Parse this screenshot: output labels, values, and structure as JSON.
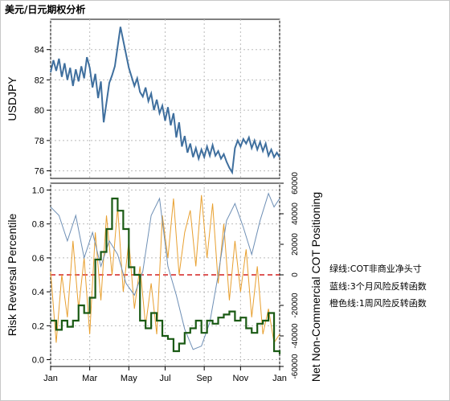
{
  "title": "美元/日元期权分析",
  "annotations": [
    "绿线:COT非商业净头寸",
    "蓝线:3个月风险反转函数",
    "橙色线:1周风险反转函数"
  ],
  "colors": {
    "usdjpy": "#3f6f9e",
    "rr3m": "#6e8fb5",
    "rr1w": "#e8a030",
    "cot": "#1a5a14",
    "threshold": "#d42020",
    "grid": "#bbbbbb"
  },
  "chart_data": [
    {
      "type": "line",
      "ylabel": "USDJPY",
      "ylim": [
        75.5,
        86
      ],
      "yticks": [
        76,
        78,
        80,
        82,
        84
      ],
      "grid": true,
      "series": [
        {
          "values": [
            [
              0,
              82.5
            ],
            [
              1,
              83.3
            ],
            [
              2,
              82.6
            ],
            [
              3,
              83.4
            ],
            [
              4,
              82.2
            ],
            [
              5,
              83.1
            ],
            [
              6,
              82.0
            ],
            [
              7,
              82.8
            ],
            [
              8,
              81.6
            ],
            [
              9,
              82.7
            ],
            [
              10,
              81.9
            ],
            [
              11,
              82.9
            ],
            [
              12,
              82.1
            ],
            [
              13,
              83.5
            ],
            [
              14,
              82.8
            ],
            [
              15,
              81.5
            ],
            [
              16,
              82.4
            ],
            [
              17,
              80.8
            ],
            [
              18,
              81.9
            ],
            [
              19,
              79.2
            ],
            [
              20,
              80.5
            ],
            [
              21,
              81.8
            ],
            [
              22,
              82.3
            ],
            [
              23,
              82.9
            ],
            [
              24,
              84.2
            ],
            [
              25,
              85.5
            ],
            [
              26,
              84.6
            ],
            [
              27,
              83.7
            ],
            [
              28,
              82.8
            ],
            [
              29,
              82.2
            ],
            [
              30,
              81.6
            ],
            [
              31,
              82.1
            ],
            [
              32,
              81.2
            ],
            [
              33,
              80.9
            ],
            [
              34,
              81.5
            ],
            [
              35,
              80.6
            ],
            [
              36,
              81.1
            ],
            [
              37,
              80.0
            ],
            [
              38,
              80.7
            ],
            [
              39,
              79.8
            ],
            [
              40,
              80.3
            ],
            [
              41,
              79.3
            ],
            [
              42,
              80.2
            ],
            [
              43,
              79.0
            ],
            [
              44,
              79.8
            ],
            [
              45,
              78.2
            ],
            [
              46,
              79.2
            ],
            [
              47,
              77.6
            ],
            [
              48,
              78.3
            ],
            [
              49,
              77.2
            ],
            [
              50,
              77.8
            ],
            [
              51,
              76.9
            ],
            [
              52,
              77.5
            ],
            [
              53,
              76.8
            ],
            [
              54,
              77.4
            ],
            [
              55,
              76.9
            ],
            [
              56,
              77.6
            ],
            [
              57,
              77.0
            ],
            [
              58,
              77.7
            ],
            [
              59,
              77.0
            ],
            [
              60,
              77.3
            ],
            [
              61,
              76.8
            ],
            [
              62,
              77.1
            ],
            [
              63,
              76.6
            ],
            [
              64,
              76.2
            ],
            [
              65,
              75.9
            ],
            [
              66,
              77.5
            ],
            [
              67,
              78.0
            ],
            [
              68,
              77.6
            ],
            [
              69,
              78.1
            ],
            [
              70,
              77.8
            ],
            [
              71,
              78.2
            ],
            [
              72,
              77.5
            ],
            [
              73,
              78.0
            ],
            [
              74,
              77.4
            ],
            [
              75,
              77.9
            ],
            [
              76,
              77.3
            ],
            [
              77,
              77.8
            ],
            [
              78,
              77.0
            ],
            [
              79,
              77.4
            ],
            [
              80,
              76.9
            ],
            [
              81,
              77.2
            ],
            [
              82,
              76.9
            ]
          ]
        }
      ]
    },
    {
      "type": "line",
      "xlabel": "",
      "ylabel": "Risk Reversal Percentile",
      "y2label": "Net Non-Commercial COT Positioning",
      "xticks": [
        "Jan",
        "Mar",
        "May",
        "Jul",
        "Sep",
        "Nov",
        "Jan"
      ],
      "ylim": [
        0,
        1
      ],
      "yticks": [
        0.0,
        0.2,
        0.4,
        0.6,
        0.8,
        1.0
      ],
      "y2lim": [
        -60000,
        60000
      ],
      "y2ticks": [
        -60000,
        -40000,
        -20000,
        0,
        20000,
        40000,
        60000
      ],
      "threshold": 0.5,
      "grid": true,
      "series": [
        {
          "values": [
            [
              0,
              0.9
            ],
            [
              3,
              0.85
            ],
            [
              6,
              0.7
            ],
            [
              9,
              0.85
            ],
            [
              12,
              0.6
            ],
            [
              15,
              0.75
            ],
            [
              18,
              0.55
            ],
            [
              21,
              0.7
            ],
            [
              24,
              0.62
            ],
            [
              27,
              0.45
            ],
            [
              30,
              0.38
            ],
            [
              33,
              0.52
            ],
            [
              36,
              0.85
            ],
            [
              39,
              0.95
            ],
            [
              42,
              0.55
            ],
            [
              45,
              0.38
            ],
            [
              48,
              0.18
            ],
            [
              51,
              0.06
            ],
            [
              54,
              0.08
            ],
            [
              57,
              0.22
            ],
            [
              60,
              0.5
            ],
            [
              63,
              0.82
            ],
            [
              66,
              0.92
            ],
            [
              69,
              0.78
            ],
            [
              72,
              0.62
            ],
            [
              75,
              0.82
            ],
            [
              78,
              0.98
            ],
            [
              80,
              0.9
            ],
            [
              82,
              0.95
            ]
          ]
        },
        {
          "values": [
            [
              0,
              0.52
            ],
            [
              2,
              0.1
            ],
            [
              4,
              0.5
            ],
            [
              6,
              0.25
            ],
            [
              8,
              0.7
            ],
            [
              10,
              0.3
            ],
            [
              12,
              0.6
            ],
            [
              14,
              0.15
            ],
            [
              16,
              0.75
            ],
            [
              18,
              0.35
            ],
            [
              20,
              0.85
            ],
            [
              22,
              0.5
            ],
            [
              24,
              0.9
            ],
            [
              26,
              0.4
            ],
            [
              28,
              0.7
            ],
            [
              30,
              0.3
            ],
            [
              32,
              0.55
            ],
            [
              34,
              0.2
            ],
            [
              36,
              0.45
            ],
            [
              38,
              0.15
            ],
            [
              40,
              0.85
            ],
            [
              42,
              0.6
            ],
            [
              44,
              0.95
            ],
            [
              46,
              0.5
            ],
            [
              48,
              0.75
            ],
            [
              50,
              0.88
            ],
            [
              52,
              0.55
            ],
            [
              54,
              0.97
            ],
            [
              56,
              0.6
            ],
            [
              58,
              0.92
            ],
            [
              60,
              0.45
            ],
            [
              62,
              0.8
            ],
            [
              64,
              0.35
            ],
            [
              66,
              0.7
            ],
            [
              68,
              0.4
            ],
            [
              70,
              0.65
            ],
            [
              72,
              0.25
            ],
            [
              74,
              0.55
            ],
            [
              76,
              0.15
            ],
            [
              78,
              0.3
            ],
            [
              80,
              0.1
            ],
            [
              82,
              0.15
            ]
          ]
        },
        {
          "values": [
            [
              0,
              -30000
            ],
            [
              2,
              -36000
            ],
            [
              4,
              -30000
            ],
            [
              6,
              -34000
            ],
            [
              8,
              -30000
            ],
            [
              10,
              -20000
            ],
            [
              12,
              -25000
            ],
            [
              14,
              -15000
            ],
            [
              16,
              10000
            ],
            [
              18,
              15000
            ],
            [
              20,
              30000
            ],
            [
              22,
              50000
            ],
            [
              24,
              42000
            ],
            [
              26,
              30000
            ],
            [
              28,
              5000
            ],
            [
              30,
              0
            ],
            [
              32,
              -30000
            ],
            [
              34,
              -35000
            ],
            [
              36,
              -25000
            ],
            [
              38,
              -30000
            ],
            [
              40,
              -40000
            ],
            [
              42,
              -42000
            ],
            [
              44,
              -50000
            ],
            [
              46,
              -45000
            ],
            [
              48,
              -38000
            ],
            [
              50,
              -35000
            ],
            [
              52,
              -30000
            ],
            [
              54,
              -38000
            ],
            [
              56,
              -30000
            ],
            [
              58,
              -32000
            ],
            [
              60,
              -28000
            ],
            [
              62,
              -26000
            ],
            [
              64,
              -24000
            ],
            [
              66,
              -30000
            ],
            [
              68,
              -28000
            ],
            [
              70,
              -35000
            ],
            [
              72,
              -38000
            ],
            [
              74,
              -32000
            ],
            [
              76,
              -30000
            ],
            [
              78,
              -25000
            ],
            [
              80,
              -50000
            ],
            [
              82,
              -52000
            ]
          ]
        }
      ]
    }
  ]
}
